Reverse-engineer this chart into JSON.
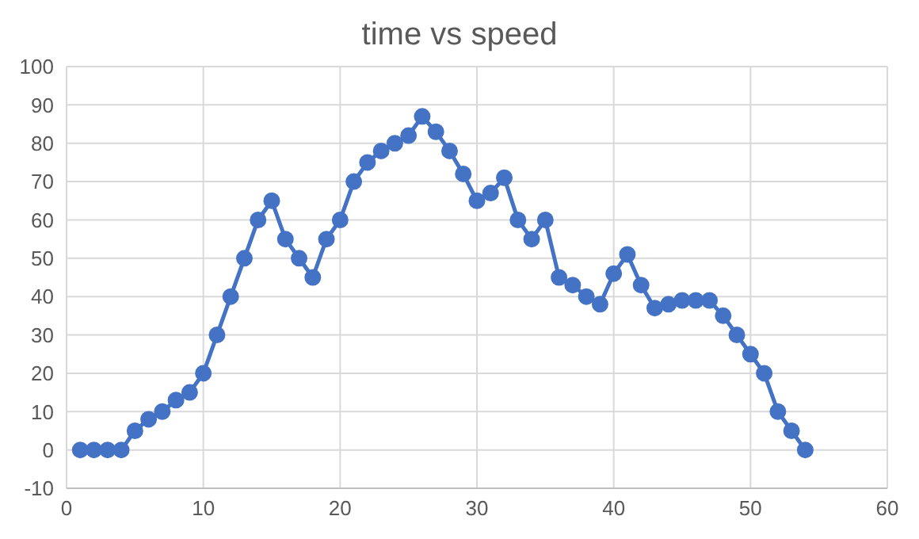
{
  "chart_data": {
    "type": "line",
    "title": "time vs speed",
    "x": [
      1,
      2,
      3,
      4,
      5,
      6,
      7,
      8,
      9,
      10,
      11,
      12,
      13,
      14,
      15,
      16,
      17,
      18,
      19,
      20,
      21,
      22,
      23,
      24,
      25,
      26,
      27,
      28,
      29,
      30,
      31,
      32,
      33,
      34,
      35,
      36,
      37,
      38,
      39,
      40,
      41,
      42,
      43,
      44,
      45,
      46,
      47,
      48,
      49,
      50,
      51,
      52,
      53,
      54
    ],
    "series": [
      {
        "color": "#4472c4",
        "values": [
          0,
          0,
          0,
          0,
          5,
          8,
          10,
          13,
          15,
          20,
          30,
          40,
          50,
          60,
          65,
          55,
          50,
          45,
          55,
          60,
          70,
          75,
          78,
          80,
          82,
          87,
          83,
          78,
          72,
          65,
          67,
          71,
          60,
          55,
          60,
          45,
          43,
          40,
          38,
          46,
          51,
          43,
          37,
          38,
          39,
          39,
          39,
          35,
          30,
          25,
          20,
          10,
          5,
          0
        ]
      }
    ],
    "xlim": [
      0,
      60
    ],
    "xticks": [
      0,
      10,
      20,
      30,
      40,
      50,
      60
    ],
    "ylim": [
      -10,
      100
    ],
    "yticks": [
      -10,
      0,
      10,
      20,
      30,
      40,
      50,
      60,
      70,
      80,
      90,
      100
    ],
    "grid": true,
    "legend": false,
    "marker": "circle",
    "line_style": "solid"
  }
}
